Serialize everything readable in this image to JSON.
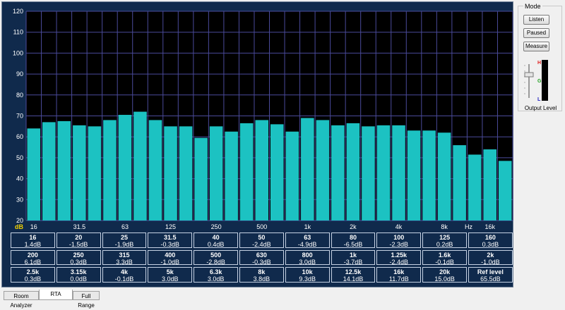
{
  "chart_data": {
    "type": "bar",
    "y_axis": {
      "ylim": [
        20,
        120
      ],
      "ticks": [
        20,
        30,
        40,
        50,
        60,
        70,
        80,
        90,
        100,
        110,
        120
      ],
      "unit_label": "dB"
    },
    "x_tick_labels": [
      "16",
      "31.5",
      "63",
      "125",
      "250",
      "500",
      "1k",
      "2k",
      "4k",
      "8k",
      "Hz",
      "16k"
    ],
    "values": [
      64,
      67,
      67.5,
      65.5,
      65,
      68,
      70.5,
      72,
      68,
      65,
      65,
      59.5,
      65,
      62.5,
      66.5,
      68,
      66,
      62.5,
      69,
      68,
      65.5,
      66.5,
      65,
      65.5,
      65.5,
      63,
      63,
      62,
      56,
      51.5,
      54,
      48.5
    ],
    "grid": true,
    "bar_color": "#1cc2c2"
  },
  "bands": [
    {
      "freq": "16",
      "val": "1.4dB"
    },
    {
      "freq": "20",
      "val": "-1.5dB"
    },
    {
      "freq": "25",
      "val": "-1.9dB"
    },
    {
      "freq": "31.5",
      "val": "-0.3dB"
    },
    {
      "freq": "40",
      "val": "0.4dB"
    },
    {
      "freq": "50",
      "val": "-2.4dB"
    },
    {
      "freq": "63",
      "val": "-4.9dB"
    },
    {
      "freq": "80",
      "val": "-6.5dB"
    },
    {
      "freq": "100",
      "val": "-2.3dB"
    },
    {
      "freq": "125",
      "val": "0.2dB"
    },
    {
      "freq": "160",
      "val": "0.3dB"
    },
    {
      "freq": "200",
      "val": "6.1dB"
    },
    {
      "freq": "250",
      "val": "0.3dB"
    },
    {
      "freq": "315",
      "val": "3.3dB"
    },
    {
      "freq": "400",
      "val": "-1.0dB"
    },
    {
      "freq": "500",
      "val": "-2.8dB"
    },
    {
      "freq": "630",
      "val": "-0.3dB"
    },
    {
      "freq": "800",
      "val": "3.0dB"
    },
    {
      "freq": "1k",
      "val": "-3.7dB"
    },
    {
      "freq": "1.25k",
      "val": "-2.4dB"
    },
    {
      "freq": "1.6k",
      "val": "-0.1dB"
    },
    {
      "freq": "2k",
      "val": "-1.0dB"
    },
    {
      "freq": "2.5k",
      "val": "0.3dB"
    },
    {
      "freq": "3.15k",
      "val": "0.0dB"
    },
    {
      "freq": "4k",
      "val": "-0.1dB"
    },
    {
      "freq": "5k",
      "val": "3.0dB"
    },
    {
      "freq": "6.3k",
      "val": "3.0dB"
    },
    {
      "freq": "8k",
      "val": "3.8dB"
    },
    {
      "freq": "10k",
      "val": "9.3dB"
    },
    {
      "freq": "12.5k",
      "val": "14.1dB"
    },
    {
      "freq": "16k",
      "val": "11.7dB"
    },
    {
      "freq": "20k",
      "val": "15.0dB"
    },
    {
      "freq": "Ref level",
      "val": "65.5dB"
    }
  ],
  "mode": {
    "title": "Mode",
    "buttons": [
      {
        "label": "Listen",
        "active": false
      },
      {
        "label": "Paused",
        "active": true
      },
      {
        "label": "Measure",
        "active": false
      }
    ],
    "output_level_label": "Output Level",
    "level_meter_labels": [
      "H",
      "G",
      "L"
    ],
    "colors": {
      "high": "#e02020",
      "good": "#20a020",
      "low": "#2020c0"
    }
  },
  "tabs": [
    {
      "label": "Room Analyzer",
      "active": false
    },
    {
      "label": "RTA",
      "active": true
    },
    {
      "label": "Full Range",
      "active": false
    }
  ]
}
